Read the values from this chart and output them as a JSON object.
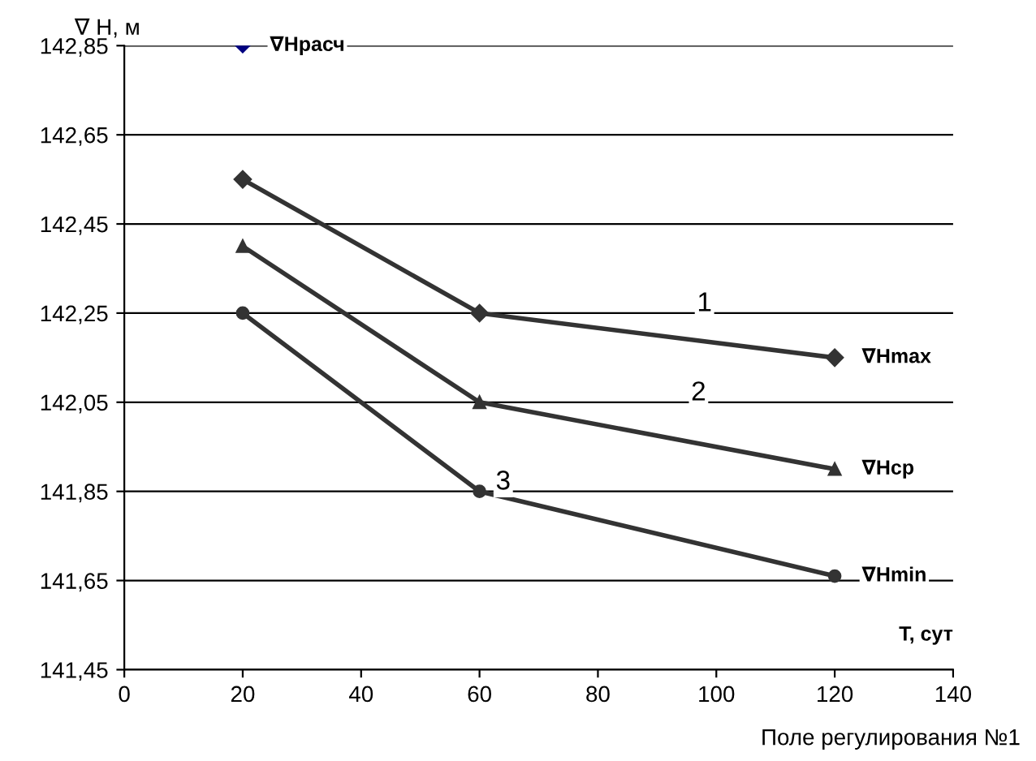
{
  "chart_data": {
    "type": "line",
    "xlabel": "T, сут",
    "ylabel": "∇ H, м",
    "xlim": [
      0,
      140
    ],
    "xticks": [
      0,
      20,
      40,
      60,
      80,
      100,
      120,
      140
    ],
    "ylim": [
      141.45,
      142.85
    ],
    "yticks": [
      {
        "value": 141.45,
        "label": "141,45"
      },
      {
        "value": 141.65,
        "label": "141,65"
      },
      {
        "value": 141.85,
        "label": "141,85"
      },
      {
        "value": 142.05,
        "label": "142,05"
      },
      {
        "value": 142.25,
        "label": "142,25"
      },
      {
        "value": 142.45,
        "label": "142,45"
      },
      {
        "value": 142.65,
        "label": "142,65"
      },
      {
        "value": 142.85,
        "label": "142,85"
      }
    ],
    "grid": "y",
    "legend": false,
    "series": [
      {
        "name": "∇Hрасч",
        "type": "scatter",
        "marker": "diamond",
        "color": "#000080",
        "x": [
          20
        ],
        "values": [
          142.85
        ]
      },
      {
        "name": "∇Hmax",
        "marker": "diamond",
        "color": "#333333",
        "x": [
          20,
          60,
          120
        ],
        "values": [
          142.55,
          142.25,
          142.15
        ]
      },
      {
        "name": "∇Hср",
        "marker": "triangle",
        "color": "#333333",
        "x": [
          20,
          60,
          120
        ],
        "values": [
          142.4,
          142.05,
          141.9
        ]
      },
      {
        "name": "∇Hmin",
        "marker": "circle",
        "color": "#333333",
        "x": [
          20,
          60,
          120
        ],
        "values": [
          142.25,
          141.85,
          141.66
        ]
      }
    ],
    "annotations": [
      {
        "text": "1",
        "x": 98,
        "y": 142.27
      },
      {
        "text": "2",
        "x": 97,
        "y": 142.07
      },
      {
        "text": "3",
        "x": 64,
        "y": 141.87
      },
      "Поле регулирования №1"
    ]
  }
}
